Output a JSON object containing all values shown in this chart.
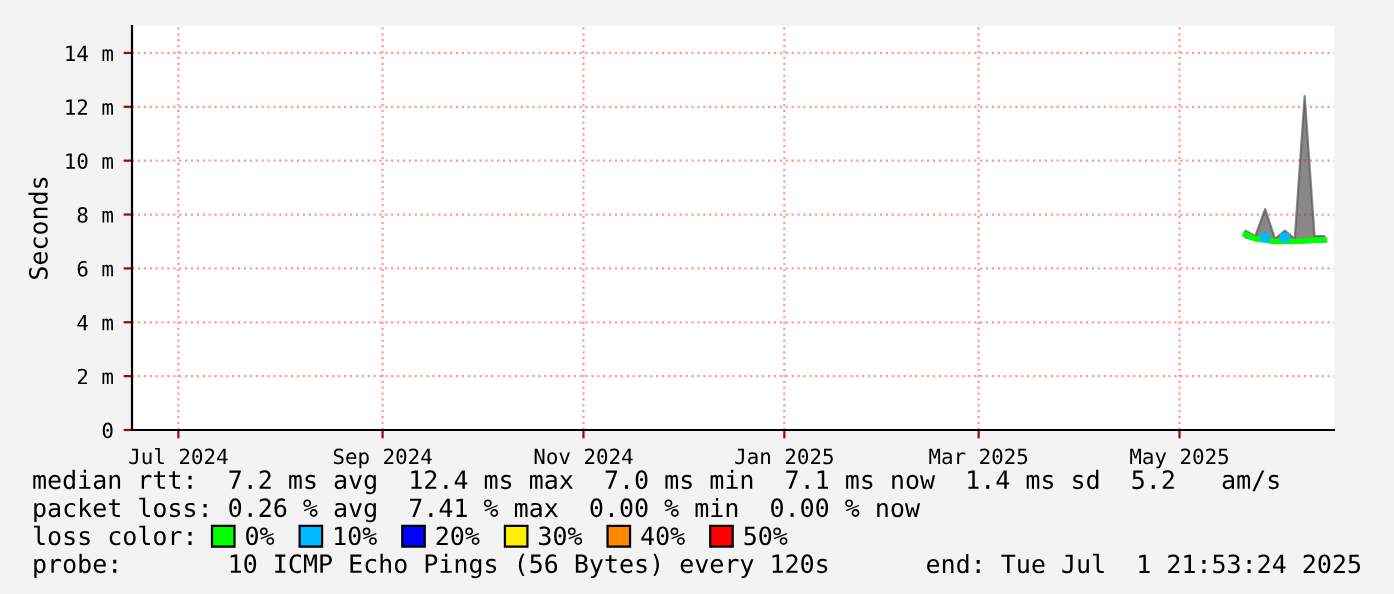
{
  "chart_data": {
    "type": "line",
    "ylabel": "Seconds",
    "legend_title": "loss color:",
    "legend": "bottom",
    "grid": true,
    "x": [
      "2025-06-05",
      "2025-06-08",
      "2025-06-11",
      "2025-06-14",
      "2025-06-17",
      "2025-06-20",
      "2025-06-23",
      "2025-06-26",
      "2025-06-29"
    ],
    "series": [
      {
        "name": "0%",
        "color": "#00ff00",
        "values": [
          7.26,
          7.1,
          7.05,
          7.0,
          7.0,
          7.0,
          7.02,
          7.05,
          7.05
        ],
        "lower": [
          7.15,
          7.05,
          7.0,
          6.95,
          6.95,
          6.95,
          6.97,
          7.0,
          7.0
        ],
        "upper": [
          7.4,
          7.2,
          8.2,
          7.1,
          7.4,
          7.1,
          12.4,
          7.2,
          7.2
        ]
      },
      {
        "name": "10%",
        "type": "scatter",
        "marker": "square",
        "color": "#00bbff",
        "x": [
          "2025-06-11",
          "2025-06-17"
        ],
        "values": [
          7.15,
          7.15
        ]
      },
      {
        "name": "20%",
        "color": "#0000ff",
        "values": [
          null,
          null,
          null,
          null,
          null,
          null,
          null,
          null,
          null
        ]
      },
      {
        "name": "30%",
        "color": "#ffee00",
        "values": [
          null,
          null,
          null,
          null,
          null,
          null,
          null,
          null,
          null
        ]
      },
      {
        "name": "40%",
        "color": "#ff8800",
        "values": [
          null,
          null,
          null,
          null,
          null,
          null,
          null,
          null,
          null
        ]
      },
      {
        "name": "50%",
        "color": "#ff0000",
        "values": [
          null,
          null,
          null,
          null,
          null,
          null,
          null,
          null,
          null
        ]
      }
    ],
    "xlim": [
      "2024-07-01T21:53",
      "2025-07-01T21:53"
    ],
    "xticks": [
      {
        "value": "2024-07-16",
        "label": "Jul 2024"
      },
      {
        "value": "2024-09-16",
        "label": "Sep 2024"
      },
      {
        "value": "2024-11-16",
        "label": "Nov 2024"
      },
      {
        "value": "2025-01-16",
        "label": "Jan 2025"
      },
      {
        "value": "2025-03-16",
        "label": "Mar 2025"
      },
      {
        "value": "2025-05-16",
        "label": "May 2025"
      }
    ],
    "ylim": [
      0,
      15
    ],
    "yticks": [
      0,
      {
        "value": 2,
        "label": "2 m"
      },
      {
        "value": 4,
        "label": "4 m"
      },
      {
        "value": 6,
        "label": "6 m"
      },
      {
        "value": 8,
        "label": "8 m"
      },
      {
        "value": 10,
        "label": "10 m"
      },
      {
        "value": 12,
        "label": "12 m"
      },
      {
        "value": 14,
        "label": "14 m"
      }
    ],
    "annotations": [
      "median rtt:  7.2 ms avg  12.4 ms max  7.0 ms min  7.1 ms now  1.4 ms sd  5.2   am/s",
      "packet loss: 0.26 % avg  7.41 % max  0.00 % min  0.00 % now",
      "probe:       10 ICMP Echo Pings (56 Bytes) every 120s",
      "end: Tue Jul  1 21:53:24 2025"
    ]
  }
}
